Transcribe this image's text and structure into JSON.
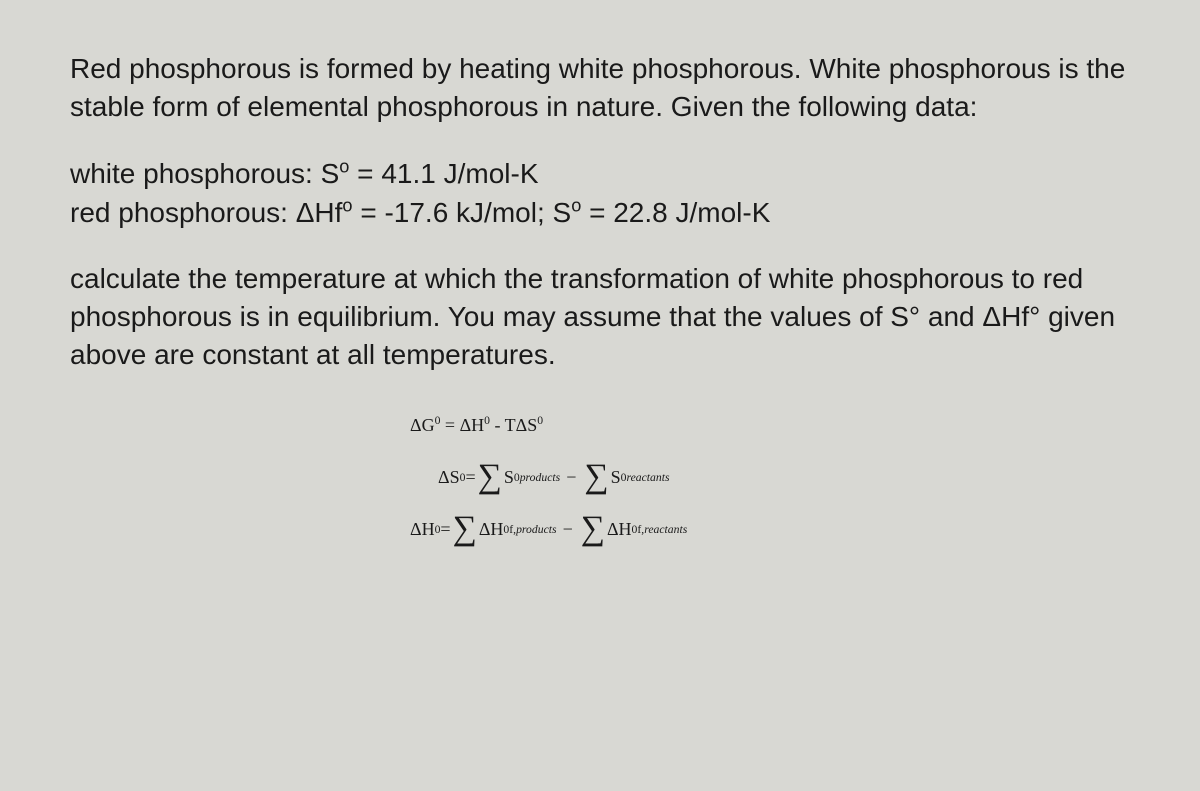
{
  "intro": "Red phosphorous is formed by heating white phosphorous.  White phosphorous is the stable form of elemental phosphorous in nature. Given the following data:",
  "data": {
    "white_label": "white phosphorous: S",
    "white_value": " = 41.1 J/mol-K",
    "red_label_a": "red phosphorous: ΔHf",
    "red_value_a": " = -17.6 kJ/mol; S",
    "red_value_b": " = 22.8 J/mol-K",
    "deg": "o"
  },
  "question": "calculate the temperature at which the transformation of white phosphorous to red phosphorous is in equilibrium.  You may assume that the values of S° and ΔHf° given above are constant at all temperatures.",
  "formulas": {
    "g_lhs": "ΔG",
    "g_sup": "0",
    "eq": " = ",
    "h": "ΔH",
    "h_sup": "0",
    "minus": " - ",
    "t": "TΔS",
    "s_sup": "0",
    "s_lhs": "ΔS",
    "sigma": "∑",
    "S": "S",
    "products": "products",
    "reactants": "reactants",
    "Hf": "ΔH",
    "f": "f,",
    "sup0": "0"
  },
  "colors": {
    "background": "#d8d8d3",
    "text": "#1a1a1a"
  },
  "fontsize": {
    "body_pt": 28,
    "formula_pt": 18,
    "sigma_pt": 34
  }
}
